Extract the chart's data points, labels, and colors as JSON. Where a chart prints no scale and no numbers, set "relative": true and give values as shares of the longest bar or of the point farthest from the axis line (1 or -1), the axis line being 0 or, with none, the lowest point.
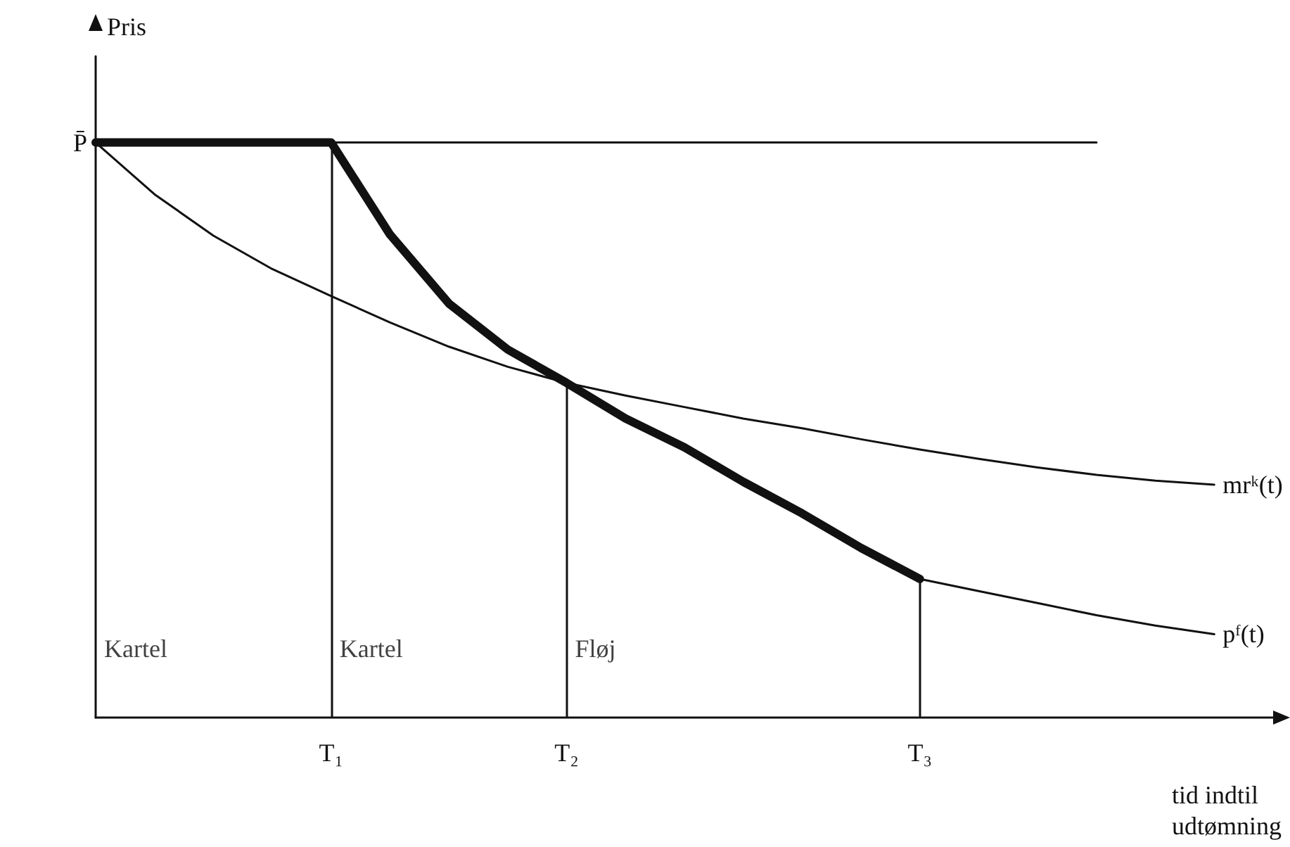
{
  "chart_data": {
    "type": "line",
    "relative": true,
    "ylabel": "Pris",
    "xlabel": "tid indtil udtømning",
    "categories": [
      null,
      null,
      null,
      null,
      "T₁",
      null,
      null,
      null,
      "T₂",
      null,
      null,
      null,
      null,
      null,
      "T₃",
      null,
      null,
      null,
      null,
      null,
      null
    ],
    "series": [
      {
        "color": "#111111",
        "values": [
          1,
          1,
          1,
          1,
          1,
          0.84,
          0.72,
          0.64,
          0.582,
          0.52,
          0.47,
          0.41,
          0.355,
          0.295,
          0.241,
          null,
          null,
          null,
          null,
          null,
          null
        ]
      },
      {
        "name": "P̄",
        "color": "#111111",
        "values": [
          1,
          1,
          1,
          1,
          1,
          1,
          1,
          1,
          1,
          1,
          1,
          1,
          1,
          1,
          1,
          1,
          1,
          1,
          null,
          null,
          null
        ]
      },
      {
        "name": "mrᵏ(t)",
        "color": "#111111",
        "values": [
          1,
          0.91,
          0.838,
          0.78,
          0.733,
          0.687,
          0.645,
          0.61,
          0.582,
          0.56,
          0.54,
          0.52,
          0.503,
          0.484,
          0.466,
          0.45,
          0.435,
          0.422,
          0.412,
          0.405,
          null
        ]
      },
      {
        "name": "pᶠ(t)",
        "color": "#111111",
        "values": [
          null,
          null,
          null,
          null,
          1,
          0.84,
          0.72,
          0.64,
          0.582,
          0.52,
          0.47,
          0.41,
          0.355,
          0.295,
          0.241,
          0.22,
          0.199,
          0.178,
          0.16,
          0.145,
          null
        ]
      }
    ],
    "ref_lines": [
      {
        "axis": "x",
        "value": "T₁"
      },
      {
        "axis": "x",
        "value": "T₂"
      },
      {
        "axis": "x",
        "value": "T₃"
      }
    ],
    "annotations": [
      "Kartel",
      "Kartel",
      "Fløj"
    ],
    "grid": false,
    "marker": "none",
    "line_style": "solid"
  }
}
